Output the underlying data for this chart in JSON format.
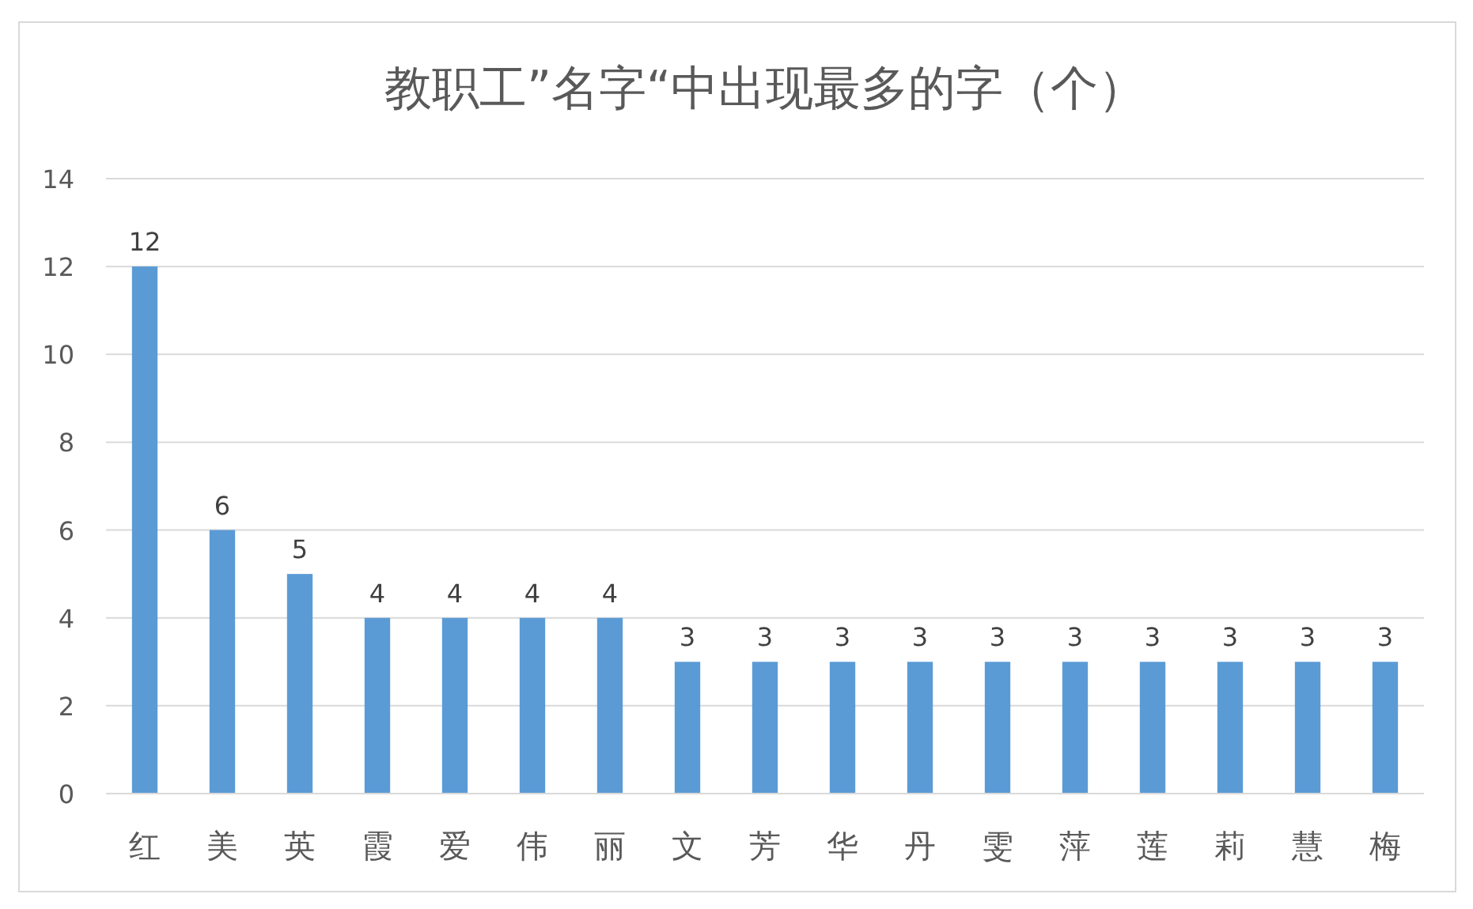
{
  "chart_data": {
    "type": "bar",
    "title": "教职工”名字“中出现最多的字（个）",
    "categories": [
      "红",
      "美",
      "英",
      "霞",
      "爱",
      "伟",
      "丽",
      "文",
      "芳",
      "华",
      "丹",
      "雯",
      "萍",
      "莲",
      "莉",
      "慧",
      "梅"
    ],
    "values": [
      12,
      6,
      5,
      4,
      4,
      4,
      4,
      3,
      3,
      3,
      3,
      3,
      3,
      3,
      3,
      3,
      3
    ],
    "color": "#5b9bd5",
    "ylim": [
      0,
      14
    ],
    "yticks": [
      0,
      2,
      4,
      6,
      8,
      10,
      12,
      14
    ],
    "grid": "y",
    "data_labels": true
  }
}
